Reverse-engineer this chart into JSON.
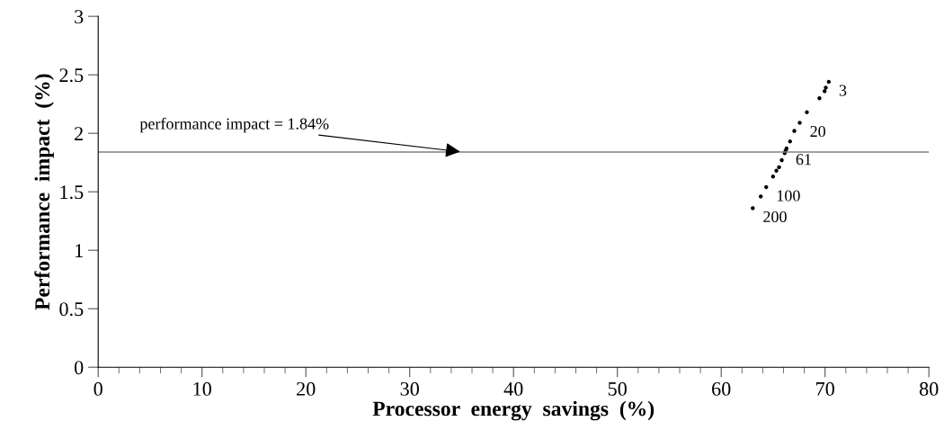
{
  "chart_data": {
    "type": "scatter",
    "xlabel": "Processor  energy  savings  (%)",
    "ylabel": "Performance  impact  (%)",
    "x": [
      70.36,
      70.07,
      69.96,
      69.46,
      68.25,
      67.56,
      67.04,
      66.63,
      66.29,
      66.2,
      66.11,
      65.83,
      65.57,
      65.31,
      64.99,
      64.33,
      63.81,
      63.04
    ],
    "series": [
      {
        "color": "#000000",
        "values": [
          2.44,
          2.39,
          2.36,
          2.3,
          2.18,
          2.09,
          2.02,
          1.93,
          1.87,
          1.85,
          1.83,
          1.77,
          1.71,
          1.68,
          1.63,
          1.54,
          1.46,
          1.36
        ]
      }
    ],
    "marker": "circle",
    "xlim": [
      0,
      80
    ],
    "ylim": [
      0,
      3
    ],
    "xticks": [
      0,
      {
        "value": 2,
        "label": null
      },
      {
        "value": 4,
        "label": null
      },
      {
        "value": 6,
        "label": null
      },
      {
        "value": 8,
        "label": null
      },
      10,
      {
        "value": 12,
        "label": null
      },
      {
        "value": 14,
        "label": null
      },
      {
        "value": 16,
        "label": null
      },
      {
        "value": 18,
        "label": null
      },
      20,
      {
        "value": 22,
        "label": null
      },
      {
        "value": 24,
        "label": null
      },
      {
        "value": 26,
        "label": null
      },
      {
        "value": 28,
        "label": null
      },
      30,
      {
        "value": 32,
        "label": null
      },
      {
        "value": 34,
        "label": null
      },
      {
        "value": 36,
        "label": null
      },
      {
        "value": 38,
        "label": null
      },
      40,
      {
        "value": 42,
        "label": null
      },
      {
        "value": 44,
        "label": null
      },
      {
        "value": 46,
        "label": null
      },
      {
        "value": 48,
        "label": null
      },
      50,
      {
        "value": 52,
        "label": null
      },
      {
        "value": 54,
        "label": null
      },
      {
        "value": 56,
        "label": null
      },
      {
        "value": 58,
        "label": null
      },
      60,
      {
        "value": 62,
        "label": null
      },
      {
        "value": 64,
        "label": null
      },
      {
        "value": 66,
        "label": null
      },
      {
        "value": 68,
        "label": null
      },
      70,
      {
        "value": 72,
        "label": null
      },
      {
        "value": 74,
        "label": null
      },
      {
        "value": 76,
        "label": null
      },
      {
        "value": 78,
        "label": null
      },
      80
    ],
    "yticks": [
      0,
      0.5,
      1,
      1.5,
      2,
      2.5,
      3
    ],
    "ref_lines": [
      {
        "axis": "y",
        "value": 1.84,
        "color": "#808080"
      }
    ],
    "annotations": [
      {
        "text": "performance impact = 1.84%",
        "x": 35.1,
        "y": 1.84
      },
      {
        "text": "3",
        "x": 70.36,
        "y": 2.44
      },
      {
        "text": "20",
        "x": 67.56,
        "y": 2.09
      },
      {
        "text": "61",
        "x": 66.2,
        "y": 1.85
      },
      {
        "text": "100",
        "x": 64.33,
        "y": 1.54
      },
      {
        "text": "200",
        "x": 63.04,
        "y": 1.36
      }
    ],
    "grid": false
  }
}
